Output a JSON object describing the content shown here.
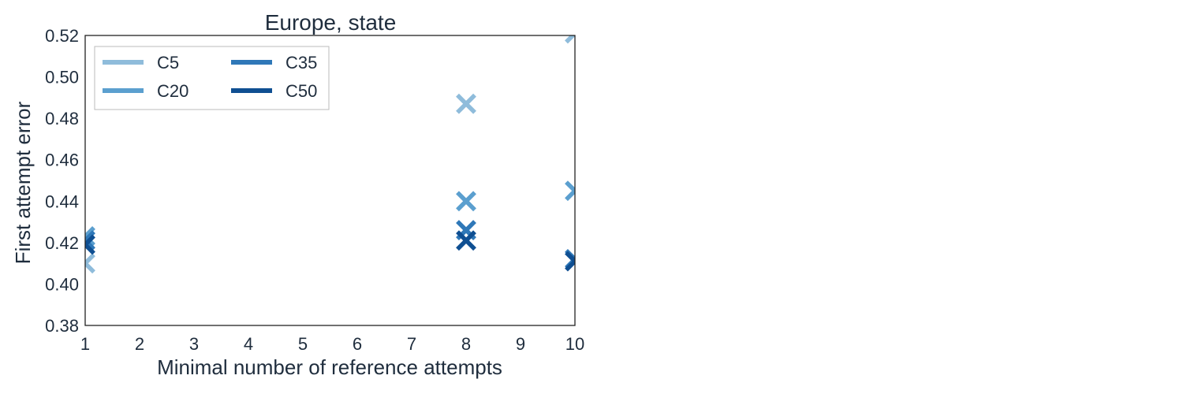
{
  "chart_data": {
    "type": "scatter",
    "title": "Europe, state",
    "xlabel": "Minimal number of reference attempts",
    "ylabel": "First attempt error",
    "xlim": [
      1,
      10
    ],
    "ylim": [
      0.38,
      0.52
    ],
    "xticks": [
      "1",
      "2",
      "3",
      "4",
      "5",
      "6",
      "7",
      "8",
      "9",
      "10"
    ],
    "yticks": [
      "0.38",
      "0.40",
      "0.42",
      "0.44",
      "0.46",
      "0.48",
      "0.50",
      "0.52"
    ],
    "marker": "x",
    "grid": false,
    "legend_position": "top-left",
    "series": [
      {
        "name": "C5",
        "color": "#8fbcdb",
        "points": [
          [
            1,
            0.41
          ],
          [
            8,
            0.487
          ],
          [
            10,
            0.521
          ]
        ]
      },
      {
        "name": "C20",
        "color": "#5b9fcf",
        "points": [
          [
            1,
            0.423
          ],
          [
            8,
            0.44
          ],
          [
            10,
            0.445
          ]
        ]
      },
      {
        "name": "C35",
        "color": "#2f78b8",
        "points": [
          [
            1,
            0.421
          ],
          [
            8,
            0.426
          ],
          [
            10,
            0.412
          ]
        ]
      },
      {
        "name": "C50",
        "color": "#0f4f92",
        "points": [
          [
            1,
            0.419
          ],
          [
            8,
            0.421
          ],
          [
            10,
            0.411
          ]
        ]
      }
    ]
  }
}
